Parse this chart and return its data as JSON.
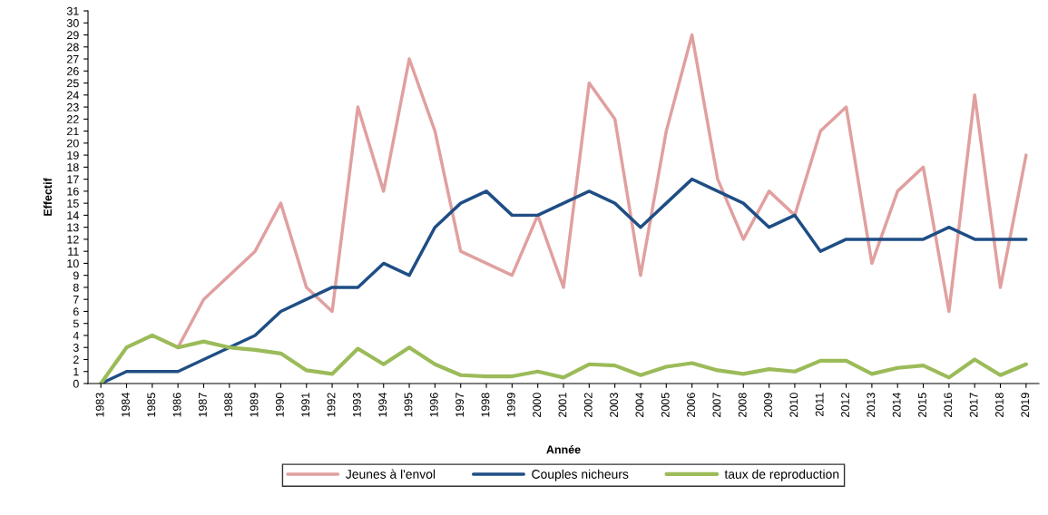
{
  "chart_data": {
    "type": "line",
    "xlabel": "Année",
    "ylabel": "Effectif",
    "categories": [
      "1983",
      "1984",
      "1985",
      "1986",
      "1987",
      "1988",
      "1989",
      "1990",
      "1991",
      "1992",
      "1993",
      "1994",
      "1995",
      "1996",
      "1997",
      "1998",
      "1999",
      "2000",
      "2001",
      "2002",
      "2003",
      "2004",
      "2005",
      "2006",
      "2007",
      "2008",
      "2009",
      "2010",
      "2011",
      "2012",
      "2013",
      "2014",
      "2015",
      "2016",
      "2017",
      "2018",
      "2019"
    ],
    "series": [
      {
        "name": "Jeunes à l'envol",
        "color": "#e0a09f",
        "values": [
          null,
          null,
          null,
          3,
          7,
          9,
          11,
          15,
          8,
          6,
          23,
          16,
          27,
          21,
          11,
          10,
          9,
          14,
          8,
          25,
          22,
          9,
          21,
          29,
          17,
          12,
          16,
          14,
          21,
          23,
          10,
          16,
          18,
          6,
          24,
          8,
          19
        ]
      },
      {
        "name": "Couples nicheurs",
        "color": "#1f4e85",
        "values": [
          0,
          1,
          1,
          1,
          2,
          3,
          4,
          6,
          7,
          8,
          8,
          10,
          9,
          13,
          15,
          16,
          14,
          14,
          15,
          16,
          15,
          13,
          15,
          17,
          16,
          15,
          13,
          14,
          11,
          12,
          12,
          12,
          12,
          13,
          12,
          12,
          12
        ]
      },
      {
        "name": "taux de reproduction",
        "color": "#9bbb59",
        "values": [
          0,
          3,
          4,
          3,
          3.5,
          3,
          2.8,
          2.5,
          1.1,
          0.8,
          2.9,
          1.6,
          3,
          1.6,
          0.7,
          0.6,
          0.6,
          1,
          0.5,
          1.6,
          1.5,
          0.7,
          1.4,
          1.7,
          1.1,
          0.8,
          1.2,
          1,
          1.9,
          1.9,
          0.8,
          1.3,
          1.5,
          0.5,
          2,
          0.7,
          1.6
        ]
      }
    ],
    "ylim": [
      0,
      31
    ],
    "yticks": [
      0,
      1,
      2,
      3,
      4,
      5,
      6,
      7,
      8,
      9,
      10,
      11,
      12,
      13,
      14,
      15,
      16,
      17,
      18,
      19,
      20,
      21,
      22,
      23,
      24,
      25,
      26,
      27,
      28,
      29,
      30,
      31
    ],
    "grid": false,
    "legend": "bottom",
    "marker": "none",
    "line_style": "solid"
  }
}
